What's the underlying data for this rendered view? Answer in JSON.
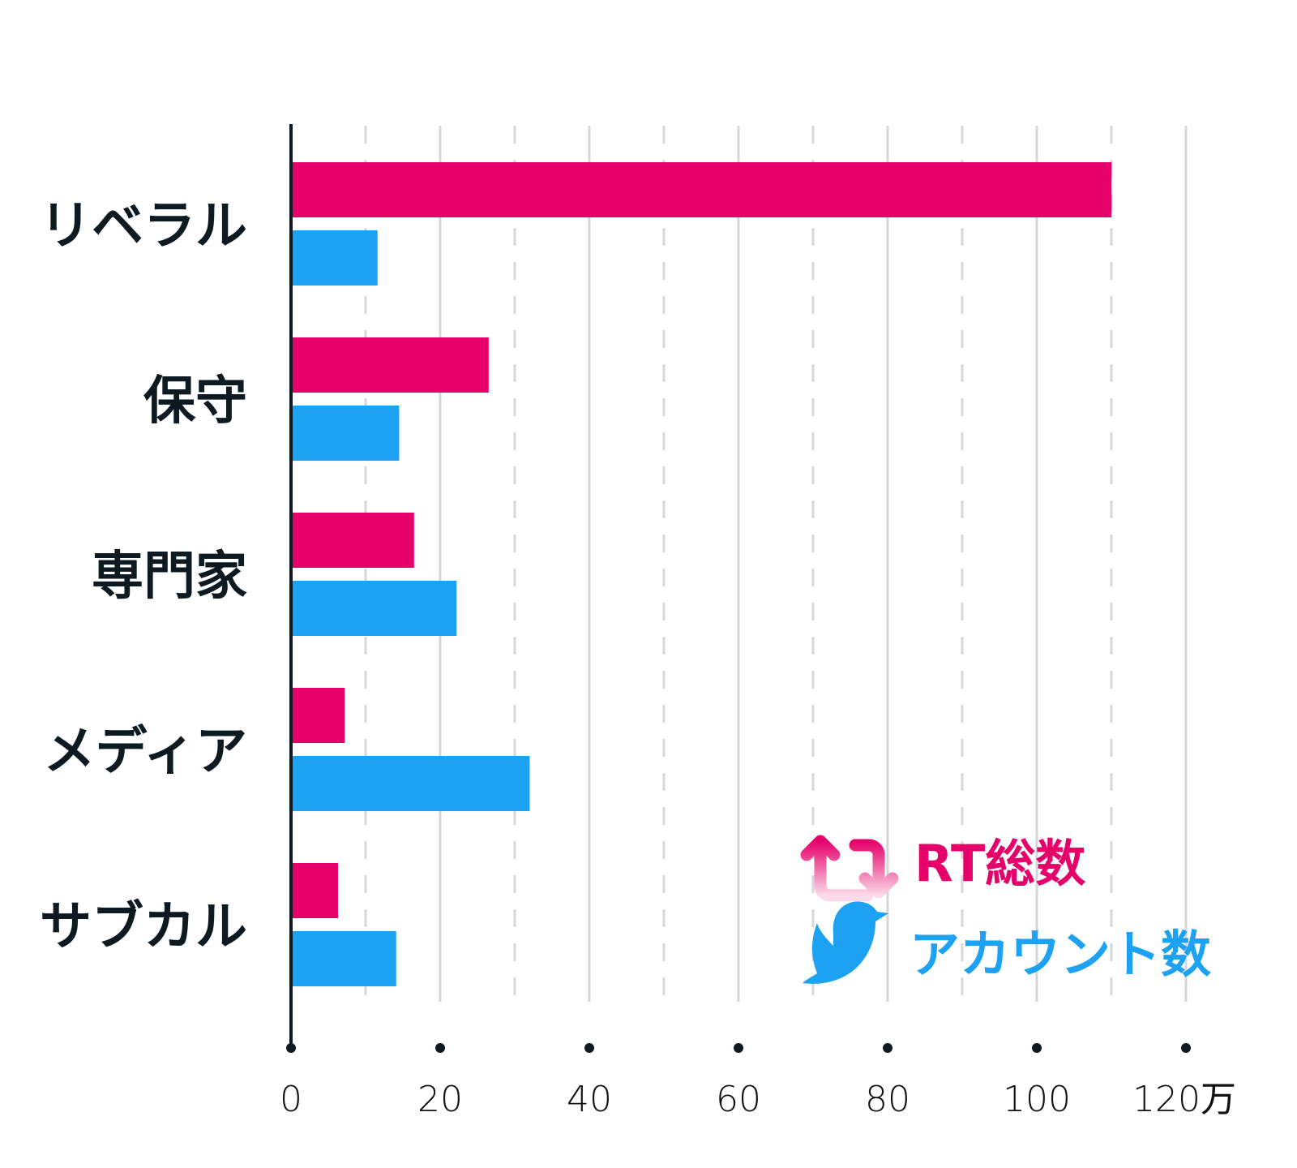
{
  "chart_data": {
    "type": "bar",
    "orientation": "horizontal",
    "title": "",
    "xlabel": "",
    "ylabel": "",
    "categories": [
      "リベラル",
      "保守",
      "専門家",
      "メディア",
      "サブカル"
    ],
    "series": [
      {
        "name": "RT総数",
        "color": "#e5006a",
        "icon": "retweet-icon",
        "values": [
          110,
          26.5,
          16.5,
          7.2,
          6.3
        ]
      },
      {
        "name": "アカウント数",
        "color": "#1da1f2",
        "icon": "twitter-bird-icon",
        "values": [
          11.6,
          14.5,
          22.2,
          32,
          14.1
        ]
      }
    ],
    "xlim": [
      0,
      120
    ],
    "xticks": [
      0,
      20,
      40,
      60,
      80,
      100,
      120
    ],
    "xtick_labels": [
      "0",
      "20",
      "40",
      "60",
      "80",
      "100",
      "120万"
    ],
    "grid": "vertical, solid every 20, dashed every 10",
    "legend_placement": "bottom-right"
  }
}
